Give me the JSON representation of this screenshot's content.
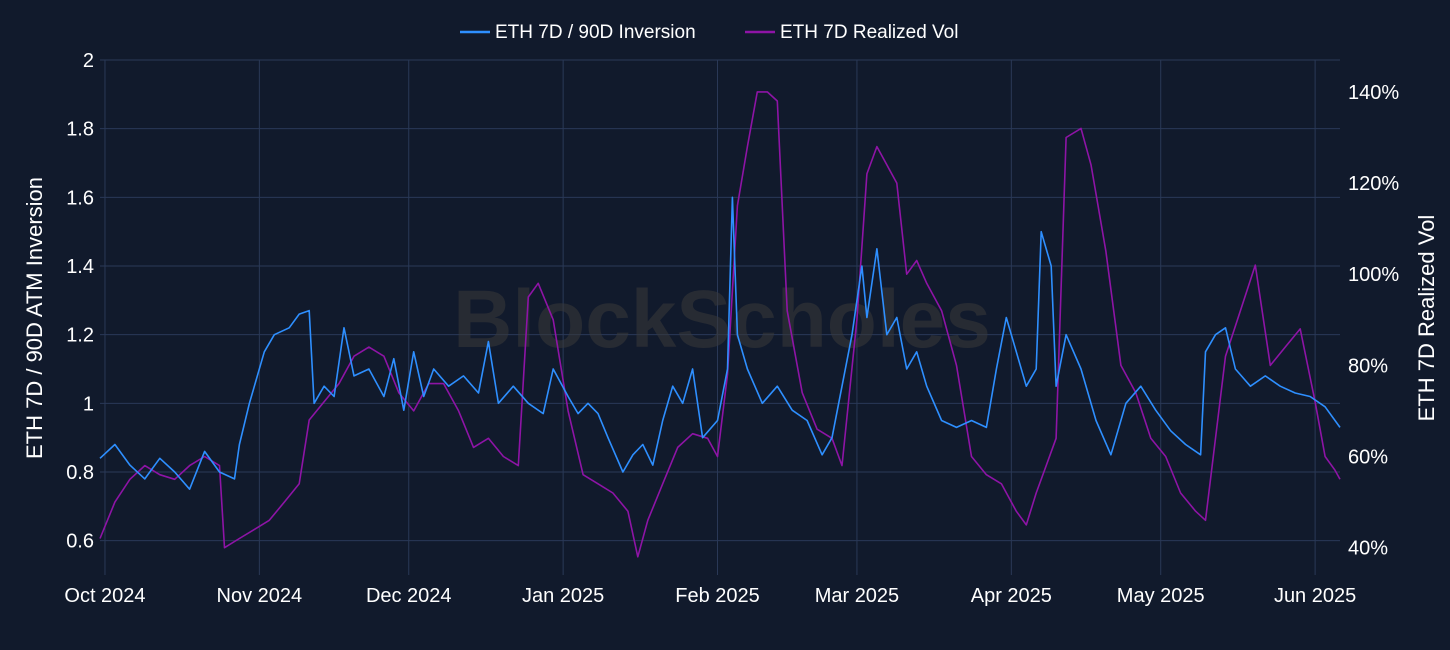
{
  "watermark": "BlockScholes",
  "colors": {
    "background": "#111a2c",
    "grid": "#2a3957",
    "text": "#ffffff",
    "watermark": "#3a3a3a"
  },
  "chart_data": {
    "type": "line",
    "dual_axis": true,
    "grid": true,
    "legend_placement": "top-center",
    "x_axis": {
      "range": [
        "2024-09-30",
        "2025-06-06"
      ],
      "ticks": [
        {
          "date": "2024-10-01",
          "label": "Oct 2024"
        },
        {
          "date": "2024-11-01",
          "label": "Nov 2024"
        },
        {
          "date": "2024-12-01",
          "label": "Dec 2024"
        },
        {
          "date": "2025-01-01",
          "label": "Jan 2025"
        },
        {
          "date": "2025-02-01",
          "label": "Feb 2025"
        },
        {
          "date": "2025-03-01",
          "label": "Mar 2025"
        },
        {
          "date": "2025-04-01",
          "label": "Apr 2025"
        },
        {
          "date": "2025-05-01",
          "label": "May 2025"
        },
        {
          "date": "2025-06-01",
          "label": "Jun 2025"
        }
      ]
    },
    "y_left": {
      "label": "ETH 7D / 90D ATM Inversion",
      "range": [
        0.5,
        2.0
      ],
      "ticks": [
        0.6,
        0.8,
        1,
        1.2,
        1.4,
        1.6,
        1.8,
        2
      ],
      "tick_labels": [
        "0.6",
        "0.8",
        "1",
        "1.2",
        "1.4",
        "1.6",
        "1.8",
        "2"
      ]
    },
    "y_right": {
      "label": "ETH 7D Realized Vol",
      "range": [
        34,
        147
      ],
      "unit": "%",
      "ticks": [
        40,
        60,
        80,
        100,
        120,
        140
      ],
      "tick_labels": [
        "40%",
        "60%",
        "80%",
        "100%",
        "120%",
        "140%"
      ]
    },
    "series": [
      {
        "name": "ETH 7D / 90D Inversion",
        "axis": "left",
        "color": "#2e8fff",
        "points": [
          [
            "2024-09-30",
            0.84
          ],
          [
            "2024-10-03",
            0.88
          ],
          [
            "2024-10-06",
            0.82
          ],
          [
            "2024-10-09",
            0.78
          ],
          [
            "2024-10-12",
            0.84
          ],
          [
            "2024-10-15",
            0.8
          ],
          [
            "2024-10-18",
            0.75
          ],
          [
            "2024-10-21",
            0.86
          ],
          [
            "2024-10-24",
            0.8
          ],
          [
            "2024-10-27",
            0.78
          ],
          [
            "2024-10-28",
            0.88
          ],
          [
            "2024-10-30",
            1.0
          ],
          [
            "2024-11-02",
            1.15
          ],
          [
            "2024-11-04",
            1.2
          ],
          [
            "2024-11-07",
            1.22
          ],
          [
            "2024-11-09",
            1.26
          ],
          [
            "2024-11-11",
            1.27
          ],
          [
            "2024-11-12",
            1.0
          ],
          [
            "2024-11-14",
            1.05
          ],
          [
            "2024-11-16",
            1.02
          ],
          [
            "2024-11-18",
            1.22
          ],
          [
            "2024-11-20",
            1.08
          ],
          [
            "2024-11-23",
            1.1
          ],
          [
            "2024-11-26",
            1.02
          ],
          [
            "2024-11-28",
            1.13
          ],
          [
            "2024-11-30",
            0.98
          ],
          [
            "2024-12-02",
            1.15
          ],
          [
            "2024-12-04",
            1.02
          ],
          [
            "2024-12-06",
            1.1
          ],
          [
            "2024-12-09",
            1.05
          ],
          [
            "2024-12-12",
            1.08
          ],
          [
            "2024-12-15",
            1.03
          ],
          [
            "2024-12-17",
            1.18
          ],
          [
            "2024-12-19",
            1.0
          ],
          [
            "2024-12-22",
            1.05
          ],
          [
            "2024-12-25",
            1.0
          ],
          [
            "2024-12-28",
            0.97
          ],
          [
            "2024-12-30",
            1.1
          ],
          [
            "2025-01-02",
            1.02
          ],
          [
            "2025-01-04",
            0.97
          ],
          [
            "2025-01-06",
            1.0
          ],
          [
            "2025-01-08",
            0.97
          ],
          [
            "2025-01-10",
            0.9
          ],
          [
            "2025-01-13",
            0.8
          ],
          [
            "2025-01-15",
            0.85
          ],
          [
            "2025-01-17",
            0.88
          ],
          [
            "2025-01-19",
            0.82
          ],
          [
            "2025-01-21",
            0.95
          ],
          [
            "2025-01-23",
            1.05
          ],
          [
            "2025-01-25",
            1.0
          ],
          [
            "2025-01-27",
            1.1
          ],
          [
            "2025-01-29",
            0.9
          ],
          [
            "2025-02-01",
            0.95
          ],
          [
            "2025-02-03",
            1.1
          ],
          [
            "2025-02-04",
            1.6
          ],
          [
            "2025-02-05",
            1.2
          ],
          [
            "2025-02-07",
            1.1
          ],
          [
            "2025-02-10",
            1.0
          ],
          [
            "2025-02-13",
            1.05
          ],
          [
            "2025-02-16",
            0.98
          ],
          [
            "2025-02-19",
            0.95
          ],
          [
            "2025-02-22",
            0.85
          ],
          [
            "2025-02-24",
            0.9
          ],
          [
            "2025-02-26",
            1.05
          ],
          [
            "2025-02-28",
            1.2
          ],
          [
            "2025-03-02",
            1.4
          ],
          [
            "2025-03-03",
            1.25
          ],
          [
            "2025-03-05",
            1.45
          ],
          [
            "2025-03-07",
            1.2
          ],
          [
            "2025-03-09",
            1.25
          ],
          [
            "2025-03-11",
            1.1
          ],
          [
            "2025-03-13",
            1.15
          ],
          [
            "2025-03-15",
            1.05
          ],
          [
            "2025-03-18",
            0.95
          ],
          [
            "2025-03-21",
            0.93
          ],
          [
            "2025-03-24",
            0.95
          ],
          [
            "2025-03-27",
            0.93
          ],
          [
            "2025-03-29",
            1.1
          ],
          [
            "2025-03-31",
            1.25
          ],
          [
            "2025-04-02",
            1.15
          ],
          [
            "2025-04-04",
            1.05
          ],
          [
            "2025-04-06",
            1.1
          ],
          [
            "2025-04-07",
            1.5
          ],
          [
            "2025-04-09",
            1.4
          ],
          [
            "2025-04-10",
            1.05
          ],
          [
            "2025-04-12",
            1.2
          ],
          [
            "2025-04-15",
            1.1
          ],
          [
            "2025-04-18",
            0.95
          ],
          [
            "2025-04-21",
            0.85
          ],
          [
            "2025-04-24",
            1.0
          ],
          [
            "2025-04-27",
            1.05
          ],
          [
            "2025-04-30",
            0.98
          ],
          [
            "2025-05-03",
            0.92
          ],
          [
            "2025-05-06",
            0.88
          ],
          [
            "2025-05-09",
            0.85
          ],
          [
            "2025-05-10",
            1.15
          ],
          [
            "2025-05-12",
            1.2
          ],
          [
            "2025-05-14",
            1.22
          ],
          [
            "2025-05-16",
            1.1
          ],
          [
            "2025-05-19",
            1.05
          ],
          [
            "2025-05-22",
            1.08
          ],
          [
            "2025-05-25",
            1.05
          ],
          [
            "2025-05-28",
            1.03
          ],
          [
            "2025-05-31",
            1.02
          ],
          [
            "2025-06-03",
            0.99
          ],
          [
            "2025-06-06",
            0.93
          ]
        ]
      },
      {
        "name": "ETH 7D Realized Vol",
        "axis": "right",
        "color": "#8e14a6",
        "points": [
          [
            "2024-09-30",
            42
          ],
          [
            "2024-10-03",
            50
          ],
          [
            "2024-10-06",
            55
          ],
          [
            "2024-10-09",
            58
          ],
          [
            "2024-10-12",
            56
          ],
          [
            "2024-10-15",
            55
          ],
          [
            "2024-10-18",
            58
          ],
          [
            "2024-10-21",
            60
          ],
          [
            "2024-10-24",
            58
          ],
          [
            "2024-10-25",
            40
          ],
          [
            "2024-10-28",
            42
          ],
          [
            "2024-10-31",
            44
          ],
          [
            "2024-11-03",
            46
          ],
          [
            "2024-11-06",
            50
          ],
          [
            "2024-11-09",
            54
          ],
          [
            "2024-11-11",
            68
          ],
          [
            "2024-11-14",
            72
          ],
          [
            "2024-11-17",
            76
          ],
          [
            "2024-11-20",
            82
          ],
          [
            "2024-11-23",
            84
          ],
          [
            "2024-11-26",
            82
          ],
          [
            "2024-11-29",
            74
          ],
          [
            "2024-12-02",
            70
          ],
          [
            "2024-12-05",
            76
          ],
          [
            "2024-12-08",
            76
          ],
          [
            "2024-12-11",
            70
          ],
          [
            "2024-12-14",
            62
          ],
          [
            "2024-12-17",
            64
          ],
          [
            "2024-12-20",
            60
          ],
          [
            "2024-12-23",
            58
          ],
          [
            "2024-12-25",
            95
          ],
          [
            "2024-12-27",
            98
          ],
          [
            "2024-12-30",
            90
          ],
          [
            "2025-01-02",
            70
          ],
          [
            "2025-01-05",
            56
          ],
          [
            "2025-01-08",
            54
          ],
          [
            "2025-01-11",
            52
          ],
          [
            "2025-01-14",
            48
          ],
          [
            "2025-01-16",
            38
          ],
          [
            "2025-01-18",
            46
          ],
          [
            "2025-01-21",
            54
          ],
          [
            "2025-01-24",
            62
          ],
          [
            "2025-01-27",
            65
          ],
          [
            "2025-01-30",
            64
          ],
          [
            "2025-02-01",
            60
          ],
          [
            "2025-02-03",
            78
          ],
          [
            "2025-02-05",
            115
          ],
          [
            "2025-02-07",
            128
          ],
          [
            "2025-02-09",
            140
          ],
          [
            "2025-02-11",
            140
          ],
          [
            "2025-02-13",
            138
          ],
          [
            "2025-02-15",
            92
          ],
          [
            "2025-02-18",
            74
          ],
          [
            "2025-02-21",
            66
          ],
          [
            "2025-02-24",
            64
          ],
          [
            "2025-02-26",
            58
          ],
          [
            "2025-03-01",
            90
          ],
          [
            "2025-03-03",
            122
          ],
          [
            "2025-03-05",
            128
          ],
          [
            "2025-03-07",
            124
          ],
          [
            "2025-03-09",
            120
          ],
          [
            "2025-03-11",
            100
          ],
          [
            "2025-03-13",
            103
          ],
          [
            "2025-03-15",
            98
          ],
          [
            "2025-03-18",
            92
          ],
          [
            "2025-03-21",
            80
          ],
          [
            "2025-03-24",
            60
          ],
          [
            "2025-03-27",
            56
          ],
          [
            "2025-03-30",
            54
          ],
          [
            "2025-04-02",
            48
          ],
          [
            "2025-04-04",
            45
          ],
          [
            "2025-04-06",
            52
          ],
          [
            "2025-04-08",
            58
          ],
          [
            "2025-04-10",
            64
          ],
          [
            "2025-04-12",
            130
          ],
          [
            "2025-04-15",
            132
          ],
          [
            "2025-04-17",
            124
          ],
          [
            "2025-04-20",
            105
          ],
          [
            "2025-04-23",
            80
          ],
          [
            "2025-04-26",
            74
          ],
          [
            "2025-04-29",
            64
          ],
          [
            "2025-05-02",
            60
          ],
          [
            "2025-05-05",
            52
          ],
          [
            "2025-05-08",
            48
          ],
          [
            "2025-05-10",
            46
          ],
          [
            "2025-05-12",
            64
          ],
          [
            "2025-05-14",
            82
          ],
          [
            "2025-05-17",
            92
          ],
          [
            "2025-05-20",
            102
          ],
          [
            "2025-05-23",
            80
          ],
          [
            "2025-05-26",
            84
          ],
          [
            "2025-05-29",
            88
          ],
          [
            "2025-06-01",
            72
          ],
          [
            "2025-06-03",
            60
          ],
          [
            "2025-06-05",
            57
          ],
          [
            "2025-06-06",
            55
          ]
        ]
      }
    ]
  }
}
